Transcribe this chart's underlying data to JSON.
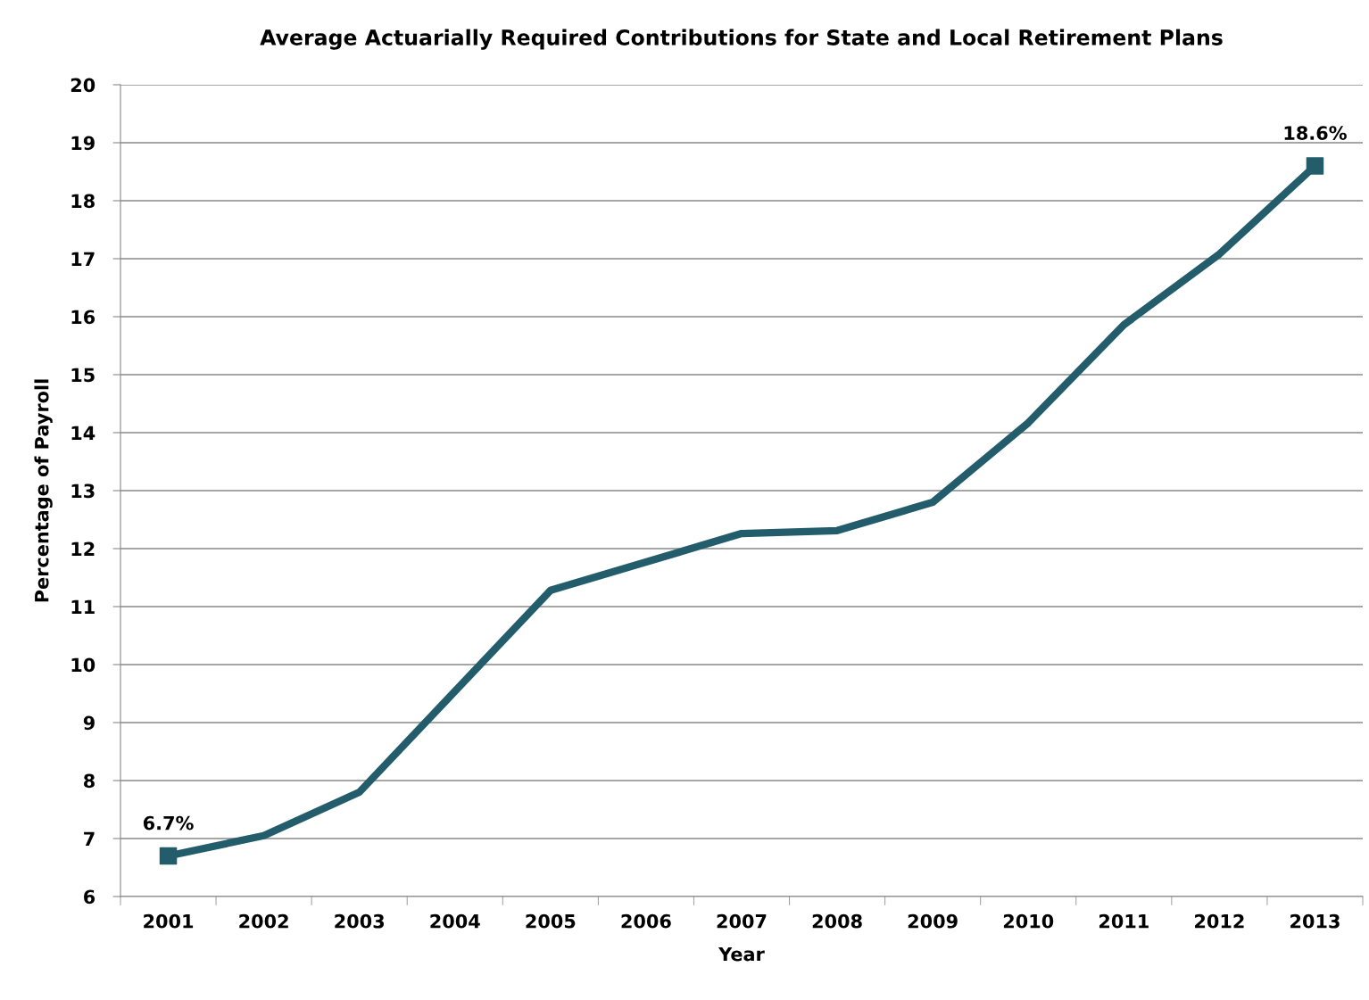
{
  "chart_data": {
    "type": "line",
    "title": "Average Actuarially Required Contributions for State and Local Retirement Plans",
    "xlabel": "Year",
    "ylabel": "Percentage of Payroll",
    "categories": [
      "2001",
      "2002",
      "2003",
      "2004",
      "2005",
      "2006",
      "2007",
      "2008",
      "2009",
      "2010",
      "2011",
      "2012",
      "2013"
    ],
    "series": [
      {
        "color": "#235d6b",
        "marker": "none",
        "values": [
          6.7,
          7.05,
          7.8,
          9.54,
          11.28,
          11.77,
          12.26,
          12.31,
          12.8,
          14.17,
          15.86,
          17.08,
          18.6
        ]
      },
      {
        "type": "scatter",
        "color": "#235d6b",
        "marker": "square",
        "values": [
          6.7,
          null,
          null,
          null,
          null,
          null,
          null,
          null,
          null,
          null,
          null,
          null,
          18.6
        ],
        "value_labels": [
          "6.7%",
          null,
          null,
          null,
          null,
          null,
          null,
          null,
          null,
          null,
          null,
          null,
          "18.6%"
        ]
      }
    ],
    "ylim": [
      6,
      20
    ],
    "yticks": [
      6,
      7,
      8,
      9,
      10,
      11,
      12,
      13,
      14,
      15,
      16,
      17,
      18,
      19,
      20
    ],
    "grid": "y",
    "line_style": "solid",
    "legend": false
  }
}
